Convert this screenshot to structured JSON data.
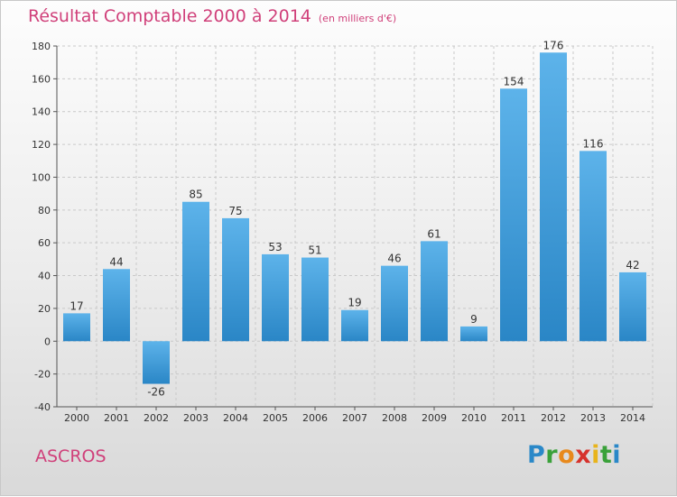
{
  "header": {
    "title": "Résultat Comptable 2000 à 2014",
    "unit": "(en milliers d'€)"
  },
  "footer": {
    "commune": "ASCROS",
    "brand": "Proxiti",
    "brand_letters": [
      "P",
      "r",
      "o",
      "x",
      "i",
      "t",
      "i"
    ],
    "brand_colors": [
      "#2a88c8",
      "#3aa13a",
      "#e8891c",
      "#d6322c",
      "#e8b41c",
      "#3aa13a",
      "#2a88c8"
    ]
  },
  "colors": {
    "bar_top": "#5db3ea",
    "bar_bottom": "#2a86c6",
    "title": "#d0407a",
    "grid": "#c9c9c9"
  },
  "chart_data": {
    "type": "bar",
    "title": "Résultat Comptable 2000 à 2014",
    "subtitle": "(en milliers d'€)",
    "categories": [
      "2000",
      "2001",
      "2002",
      "2003",
      "2004",
      "2005",
      "2006",
      "2007",
      "2008",
      "2009",
      "2010",
      "2011",
      "2012",
      "2013",
      "2014"
    ],
    "values": [
      17,
      44,
      -26,
      85,
      75,
      53,
      51,
      19,
      46,
      61,
      9,
      154,
      176,
      116,
      42
    ],
    "ylim": [
      -40,
      180
    ],
    "yticks": [
      -40,
      -20,
      0,
      20,
      40,
      60,
      80,
      100,
      120,
      140,
      160,
      180
    ],
    "grid": true,
    "xlabel": "",
    "ylabel": ""
  }
}
